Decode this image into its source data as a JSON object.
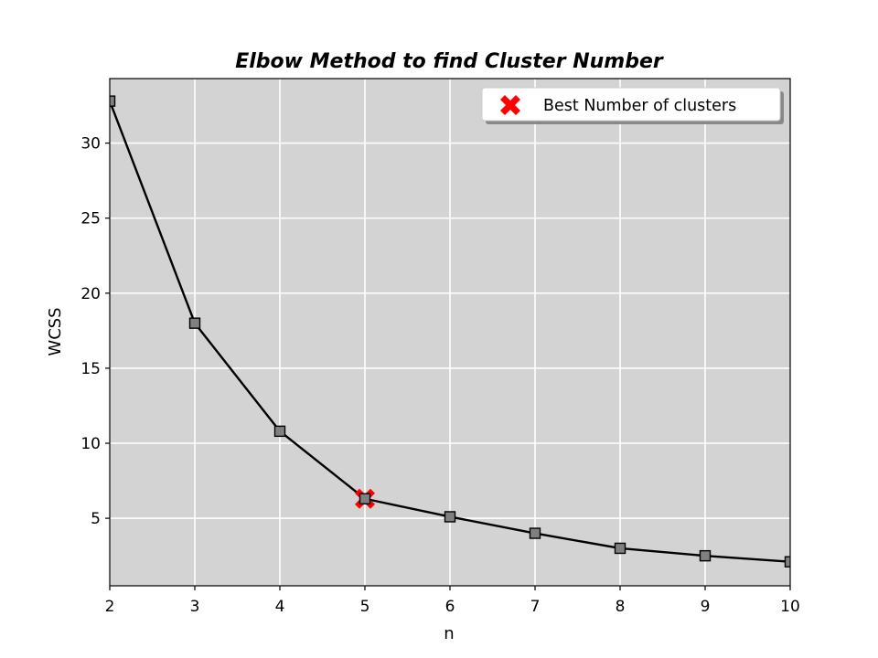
{
  "chart_data": {
    "type": "line",
    "title": "Elbow Method to find Cluster Number",
    "xlabel": "n",
    "ylabel": "WCSS",
    "xlim": [
      2,
      10
    ],
    "ylim": [
      0.5,
      34.3
    ],
    "x_ticks": [
      2,
      3,
      4,
      5,
      6,
      7,
      8,
      9,
      10
    ],
    "y_ticks": [
      5,
      10,
      15,
      20,
      25,
      30
    ],
    "grid": true,
    "background_color": "#d3d3d3",
    "series": [
      {
        "x": [
          2,
          3,
          4,
          5,
          6,
          7,
          8,
          9,
          10
        ],
        "values": [
          32.8,
          18.0,
          10.8,
          6.3,
          5.1,
          4.0,
          3.0,
          2.5,
          2.1
        ],
        "line_color": "#000000",
        "marker": "square",
        "marker_color": "#808080"
      }
    ],
    "highlight": {
      "name": "Best Number of clusters",
      "x": 5,
      "y": 6.3,
      "marker": "X",
      "color": "#ff0000"
    },
    "legend": {
      "position": "top-right",
      "entries": [
        "Best Number of clusters"
      ]
    }
  }
}
